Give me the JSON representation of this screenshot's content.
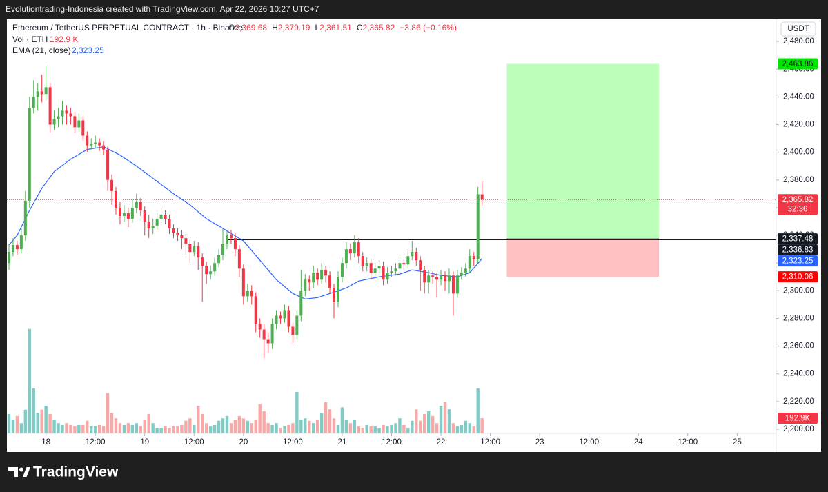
{
  "page": {
    "header": "Evolutiontrading-Indonesia created with TradingView.com, Apr 22, 2026 10:27 UTC+7",
    "brand": "TradingView"
  },
  "chart_data": {
    "type": "candlestick",
    "currency": "USDT",
    "legend": {
      "symbol": "Ethereum / TetherUS PERPETUAL CONTRACT · 1h · Binance",
      "fields": [
        {
          "key": "O",
          "label": "2,369.68"
        },
        {
          "key": "H",
          "label": "2,379.19"
        },
        {
          "key": "L",
          "label": "2,361.51"
        },
        {
          "key": "C",
          "label": "2,365.82"
        }
      ],
      "change": "−3.86 (−0.16%)"
    },
    "up_color": "#4caf50",
    "down_color": "#f23645",
    "candles": [
      [
        2320,
        2334,
        2315,
        2328
      ],
      [
        2328,
        2338,
        2325,
        2333
      ],
      [
        2333,
        2336,
        2326,
        2330
      ],
      [
        2330,
        2345,
        2327,
        2340
      ],
      [
        2340,
        2372,
        2336,
        2365
      ],
      [
        2365,
        2440,
        2360,
        2432
      ],
      [
        2432,
        2452,
        2428,
        2440
      ],
      [
        2440,
        2450,
        2430,
        2444
      ],
      [
        2444,
        2456,
        2436,
        2442
      ],
      [
        2442,
        2463,
        2438,
        2447
      ],
      [
        2447,
        2450,
        2414,
        2420
      ],
      [
        2420,
        2430,
        2416,
        2424
      ],
      [
        2424,
        2432,
        2418,
        2426
      ],
      [
        2426,
        2437,
        2420,
        2430
      ],
      [
        2430,
        2434,
        2420,
        2428
      ],
      [
        2428,
        2432,
        2420,
        2426
      ],
      [
        2426,
        2429,
        2414,
        2418
      ],
      [
        2418,
        2428,
        2415,
        2423
      ],
      [
        2423,
        2426,
        2408,
        2412
      ],
      [
        2412,
        2415,
        2400,
        2405
      ],
      [
        2405,
        2410,
        2402,
        2406
      ],
      [
        2406,
        2412,
        2403,
        2407
      ],
      [
        2407,
        2410,
        2401,
        2405
      ],
      [
        2405,
        2408,
        2398,
        2402
      ],
      [
        2402,
        2404,
        2372,
        2380
      ],
      [
        2380,
        2384,
        2362,
        2372
      ],
      [
        2372,
        2375,
        2355,
        2360
      ],
      [
        2360,
        2364,
        2348,
        2354
      ],
      [
        2354,
        2362,
        2350,
        2356
      ],
      [
        2356,
        2360,
        2346,
        2352
      ],
      [
        2352,
        2366,
        2349,
        2360
      ],
      [
        2360,
        2370,
        2356,
        2364
      ],
      [
        2364,
        2367,
        2354,
        2358
      ],
      [
        2358,
        2361,
        2340,
        2350
      ],
      [
        2350,
        2355,
        2338,
        2345
      ],
      [
        2345,
        2352,
        2341,
        2347
      ],
      [
        2347,
        2356,
        2344,
        2352
      ],
      [
        2352,
        2360,
        2349,
        2355
      ],
      [
        2355,
        2358,
        2348,
        2352
      ],
      [
        2352,
        2355,
        2341,
        2345
      ],
      [
        2345,
        2348,
        2338,
        2342
      ],
      [
        2342,
        2345,
        2336,
        2340
      ],
      [
        2340,
        2344,
        2330,
        2338
      ],
      [
        2338,
        2341,
        2326,
        2334
      ],
      [
        2334,
        2337,
        2320,
        2328
      ],
      [
        2328,
        2336,
        2325,
        2332
      ],
      [
        2332,
        2335,
        2315,
        2324
      ],
      [
        2324,
        2327,
        2292,
        2318
      ],
      [
        2318,
        2321,
        2305,
        2312
      ],
      [
        2312,
        2318,
        2308,
        2314
      ],
      [
        2314,
        2324,
        2311,
        2320
      ],
      [
        2320,
        2330,
        2317,
        2326
      ],
      [
        2326,
        2345,
        2322,
        2334
      ],
      [
        2334,
        2343,
        2330,
        2340
      ],
      [
        2340,
        2344,
        2334,
        2338
      ],
      [
        2338,
        2342,
        2325,
        2330
      ],
      [
        2330,
        2333,
        2310,
        2316
      ],
      [
        2316,
        2319,
        2290,
        2296
      ],
      [
        2296,
        2305,
        2292,
        2300
      ],
      [
        2300,
        2304,
        2290,
        2296
      ],
      [
        2296,
        2299,
        2270,
        2276
      ],
      [
        2276,
        2280,
        2266,
        2272
      ],
      [
        2272,
        2276,
        2251,
        2265
      ],
      [
        2265,
        2270,
        2255,
        2262
      ],
      [
        2262,
        2280,
        2258,
        2276
      ],
      [
        2276,
        2286,
        2272,
        2282
      ],
      [
        2282,
        2285,
        2276,
        2280
      ],
      [
        2280,
        2290,
        2277,
        2286
      ],
      [
        2286,
        2289,
        2270,
        2274
      ],
      [
        2274,
        2277,
        2262,
        2268
      ],
      [
        2268,
        2286,
        2265,
        2282
      ],
      [
        2282,
        2315,
        2278,
        2300
      ],
      [
        2300,
        2312,
        2296,
        2308
      ],
      [
        2308,
        2311,
        2300,
        2306
      ],
      [
        2306,
        2318,
        2302,
        2313
      ],
      [
        2313,
        2316,
        2304,
        2308
      ],
      [
        2308,
        2320,
        2305,
        2315
      ],
      [
        2315,
        2318,
        2306,
        2311
      ],
      [
        2311,
        2314,
        2298,
        2302
      ],
      [
        2302,
        2305,
        2280,
        2292
      ],
      [
        2292,
        2314,
        2288,
        2310
      ],
      [
        2310,
        2324,
        2306,
        2320
      ],
      [
        2320,
        2335,
        2316,
        2330
      ],
      [
        2330,
        2334,
        2322,
        2327
      ],
      [
        2327,
        2340,
        2324,
        2335
      ],
      [
        2335,
        2338,
        2320,
        2325
      ],
      [
        2325,
        2328,
        2314,
        2318
      ],
      [
        2318,
        2324,
        2314,
        2320
      ],
      [
        2320,
        2323,
        2308,
        2313
      ],
      [
        2313,
        2320,
        2310,
        2316
      ],
      [
        2316,
        2322,
        2313,
        2318
      ],
      [
        2318,
        2321,
        2304,
        2308
      ],
      [
        2308,
        2317,
        2305,
        2313
      ],
      [
        2313,
        2318,
        2310,
        2314
      ],
      [
        2314,
        2320,
        2311,
        2316
      ],
      [
        2316,
        2324,
        2313,
        2320
      ],
      [
        2320,
        2323,
        2315,
        2319
      ],
      [
        2319,
        2330,
        2316,
        2325
      ],
      [
        2325,
        2336,
        2322,
        2328
      ],
      [
        2328,
        2331,
        2318,
        2322
      ],
      [
        2322,
        2325,
        2300,
        2315
      ],
      [
        2315,
        2318,
        2298,
        2306
      ],
      [
        2306,
        2315,
        2298,
        2311
      ],
      [
        2311,
        2314,
        2305,
        2310
      ],
      [
        2310,
        2313,
        2295,
        2308
      ],
      [
        2308,
        2315,
        2304,
        2311
      ],
      [
        2311,
        2314,
        2300,
        2307
      ],
      [
        2307,
        2316,
        2298,
        2311
      ],
      [
        2311,
        2314,
        2282,
        2298
      ],
      [
        2298,
        2315,
        2295,
        2311
      ],
      [
        2311,
        2317,
        2308,
        2313
      ],
      [
        2313,
        2320,
        2310,
        2316
      ],
      [
        2316,
        2330,
        2313,
        2325
      ],
      [
        2325,
        2328,
        2318,
        2323
      ],
      [
        2323,
        2375,
        2320,
        2369.68
      ],
      [
        2369.68,
        2379.19,
        2361.51,
        2365.82
      ]
    ],
    "last_price_label": "2,365.82",
    "countdown": "32:36",
    "volume": {
      "name": "Vol · ETH",
      "legend_value": "192.9 K",
      "value_label": "192.9K",
      "up_color": "#80cbc4",
      "down_color": "#f7a9a7",
      "ylim": [
        0,
        1400
      ],
      "values": [
        245,
        175,
        220,
        130,
        300,
        1324,
        570,
        260,
        300,
        350,
        245,
        175,
        130,
        105,
        130,
        105,
        90,
        105,
        105,
        160,
        90,
        90,
        105,
        90,
        510,
        260,
        190,
        130,
        105,
        130,
        105,
        130,
        90,
        175,
        245,
        130,
        70,
        70,
        90,
        70,
        90,
        90,
        105,
        160,
        190,
        105,
        350,
        245,
        130,
        90,
        105,
        160,
        190,
        220,
        130,
        175,
        220,
        190,
        160,
        130,
        175,
        370,
        280,
        130,
        105,
        130,
        70,
        90,
        105,
        130,
        525,
        175,
        190,
        160,
        130,
        175,
        260,
        395,
        305,
        190,
        105,
        330,
        175,
        130,
        175,
        90,
        70,
        105,
        90,
        90,
        70,
        105,
        90,
        105,
        130,
        190,
        105,
        70,
        160,
        305,
        160,
        245,
        280,
        220,
        130,
        350,
        395,
        305,
        130,
        90,
        105,
        160,
        130,
        90,
        570,
        192.9
      ]
    },
    "ema": {
      "name": "EMA (21, close)",
      "color": "#2962ff",
      "value_label": "2,323.25",
      "x": [
        0,
        2,
        5,
        8,
        11,
        15,
        19,
        23,
        27,
        31,
        36,
        40,
        44,
        48,
        52,
        57,
        61,
        65,
        69,
        72,
        75,
        78,
        82,
        85,
        90,
        95,
        98,
        102,
        105,
        109,
        112,
        115
      ],
      "values": [
        2333,
        2340,
        2358,
        2374,
        2386,
        2395,
        2402,
        2404,
        2398,
        2390,
        2379,
        2370,
        2362,
        2352,
        2345,
        2336,
        2322,
        2308,
        2298,
        2294,
        2295,
        2298,
        2302,
        2307,
        2310,
        2312,
        2315,
        2313,
        2311,
        2310,
        2313,
        2323.25
      ]
    },
    "position": {
      "start": 121,
      "end": 158,
      "entry": 2337.48,
      "entry_label": "2,337.48",
      "target": 2463.86,
      "target_label": "2,463.86",
      "stop": 2310.06,
      "stop_label": "2,310.06"
    },
    "hline": {
      "start": 53,
      "value": 2336.83,
      "label": "2,336.83"
    },
    "xlim": [
      -0.5,
      186.5
    ],
    "xticks": [
      {
        "value": 9,
        "label": "18"
      },
      {
        "value": 21,
        "label": "12:00"
      },
      {
        "value": 33,
        "label": "19"
      },
      {
        "value": 45,
        "label": "12:00"
      },
      {
        "value": 57,
        "label": "20"
      },
      {
        "value": 69,
        "label": "12:00"
      },
      {
        "value": 81,
        "label": "21"
      },
      {
        "value": 93,
        "label": "12:00"
      },
      {
        "value": 105,
        "label": "22"
      },
      {
        "value": 117,
        "label": "12:00"
      },
      {
        "value": 129,
        "label": "23"
      },
      {
        "value": 141,
        "label": "12:00"
      },
      {
        "value": 153,
        "label": "24"
      },
      {
        "value": 165,
        "label": "12:00"
      },
      {
        "value": 177,
        "label": "25"
      }
    ],
    "ylim": [
      2197,
      2495
    ],
    "yticks": [
      {
        "value": 2200,
        "label": "2,200.00"
      },
      {
        "value": 2220,
        "label": "2,220.00"
      },
      {
        "value": 2240,
        "label": "2,240.00"
      },
      {
        "value": 2260,
        "label": "2,260.00"
      },
      {
        "value": 2280,
        "label": "2,280.00"
      },
      {
        "value": 2300,
        "label": "2,300.00"
      },
      {
        "value": 2320,
        "label": "2,320.00"
      },
      {
        "value": 2340,
        "label": "2,340.00"
      },
      {
        "value": 2360,
        "label": "2,360.00"
      },
      {
        "value": 2380,
        "label": "2,380.00"
      },
      {
        "value": 2400,
        "label": "2,400.00"
      },
      {
        "value": 2420,
        "label": "2,420.00"
      },
      {
        "value": 2440,
        "label": "2,440.00"
      },
      {
        "value": 2460,
        "label": "2,460.00"
      },
      {
        "value": 2480,
        "label": "2,480.00"
      }
    ],
    "grid": false
  }
}
